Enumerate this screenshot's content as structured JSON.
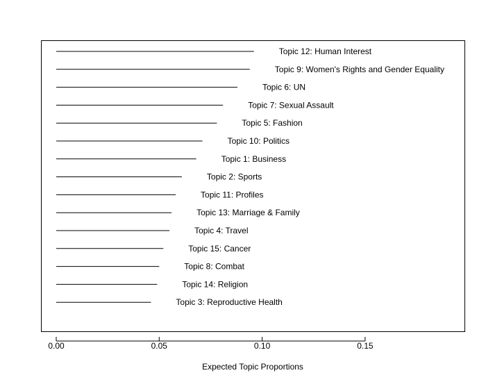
{
  "chart_data": {
    "type": "bar",
    "xlabel": "Expected Topic Proportions",
    "xlim": [
      0,
      0.19
    ],
    "x_ticks": [
      "0.00",
      "0.05",
      "0.10",
      "0.15"
    ],
    "x_tick_values": [
      0,
      0.05,
      0.1,
      0.15
    ],
    "grid": false,
    "colors": {
      "line": "#000000",
      "frame": "#000000"
    },
    "categories": [
      "Topic 12: Human Interest",
      "Topic 9: Women's Rights and Gender Equality",
      "Topic 6: UN",
      "Topic 7: Sexual Assault",
      "Topic 5: Fashion",
      "Topic 10: Politics",
      "Topic 1: Business",
      "Topic 2: Sports",
      "Topic 11: Profiles",
      "Topic 13: Marriage & Family",
      "Topic 4: Travel",
      "Topic 15: Cancer",
      "Topic 8: Combat",
      "Topic 14: Religion",
      "Topic 3: Reproductive Health"
    ],
    "values": [
      0.096,
      0.094,
      0.088,
      0.081,
      0.078,
      0.071,
      0.068,
      0.061,
      0.058,
      0.056,
      0.055,
      0.052,
      0.05,
      0.049,
      0.046
    ]
  }
}
